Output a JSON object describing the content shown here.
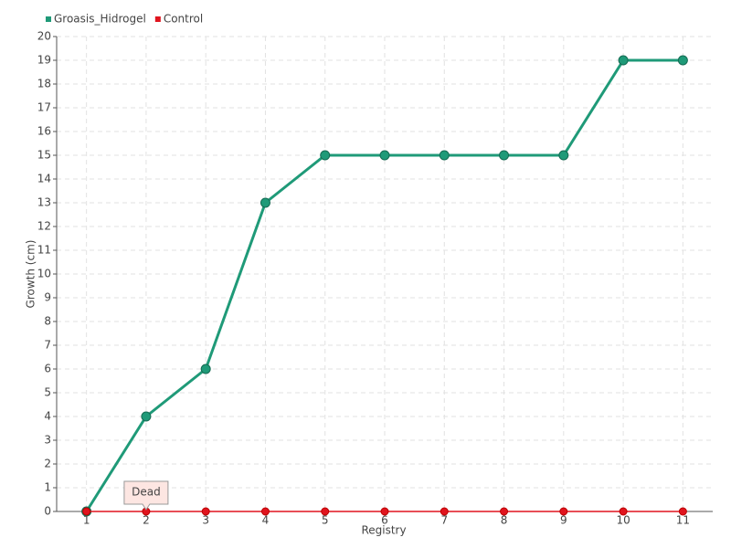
{
  "chart_data": {
    "type": "line",
    "xlabel": "Registry",
    "ylabel": "Growth (cm)",
    "categories": [
      "1",
      "2",
      "3",
      "4",
      "5",
      "6",
      "7",
      "8",
      "9",
      "10",
      "11"
    ],
    "series": [
      {
        "name": "Groasis_Hidrogel",
        "color": "#1f9a78",
        "values": [
          0,
          4,
          6,
          13,
          15,
          15,
          15,
          15,
          15,
          19,
          19
        ]
      },
      {
        "name": "Control",
        "color": "#e0141e",
        "values": [
          0,
          0,
          0,
          0,
          0,
          0,
          0,
          0,
          0,
          0,
          0
        ]
      }
    ],
    "ylim": [
      0,
      20
    ],
    "yticks": [
      0,
      1,
      2,
      3,
      4,
      5,
      6,
      7,
      8,
      9,
      10,
      11,
      12,
      13,
      14,
      15,
      16,
      17,
      18,
      19,
      20
    ],
    "grid": true,
    "legend": "top-left",
    "annotations": [
      {
        "text": "Dead",
        "series": "Control",
        "category": "2"
      }
    ]
  }
}
